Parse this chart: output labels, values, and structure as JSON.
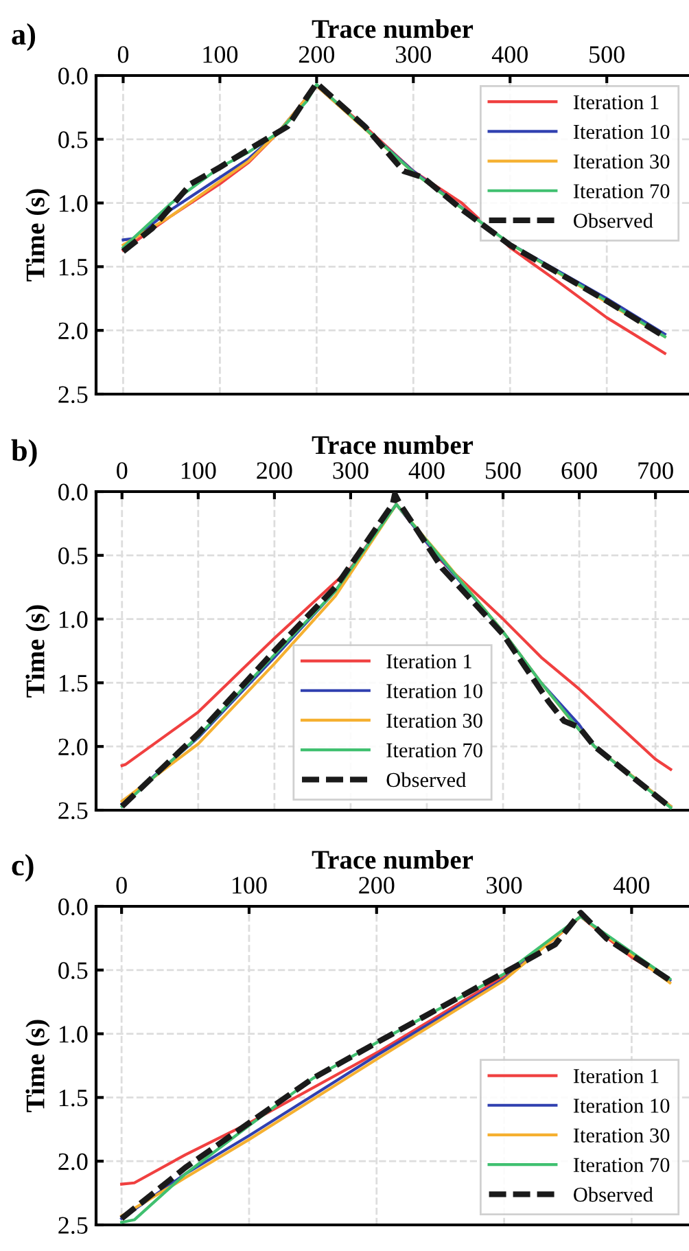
{
  "chart_data": [
    {
      "type": "line",
      "xlabel": "Trace number",
      "ylabel": "Time (s)",
      "annotations": [
        "a)"
      ],
      "xlim": [
        -28,
        585
      ],
      "xticks": [
        0,
        100,
        200,
        300,
        400,
        500
      ],
      "ylim": [
        2.5,
        0.0
      ],
      "yticks": [
        {
          "value": 0,
          "label": "0.0"
        },
        0.5,
        {
          "value": 1,
          "label": "1.0"
        },
        1.5,
        {
          "value": 2,
          "label": "2.0"
        },
        2.5
      ],
      "grid": true,
      "legend": "top right",
      "series": [
        {
          "name": "Iteration 1",
          "color": "#f04040",
          "x": [
            0,
            50,
            100,
            130,
            160,
            200,
            250,
            300,
            350,
            400,
            450,
            500,
            560
          ],
          "values": [
            1.37,
            1.1,
            0.85,
            0.68,
            0.45,
            0.08,
            0.4,
            0.75,
            1.0,
            1.35,
            1.62,
            1.9,
            2.18
          ]
        },
        {
          "name": "Iteration 10",
          "color": "#3040b0",
          "x": [
            0,
            10,
            50,
            100,
            130,
            160,
            200,
            300,
            400,
            500,
            560
          ],
          "values": [
            1.29,
            1.28,
            1.05,
            0.8,
            0.65,
            0.45,
            0.08,
            0.75,
            1.32,
            1.75,
            2.03
          ]
        },
        {
          "name": "Iteration 30",
          "color": "#f5b030",
          "x": [
            0,
            50,
            100,
            130,
            160,
            200,
            300,
            400,
            500,
            560
          ],
          "values": [
            1.33,
            1.1,
            0.83,
            0.67,
            0.45,
            0.08,
            0.76,
            1.32,
            1.78,
            2.05
          ]
        },
        {
          "name": "Iteration 70",
          "color": "#40c070",
          "x": [
            0,
            50,
            100,
            130,
            160,
            190,
            200,
            300,
            400,
            500,
            560
          ],
          "values": [
            1.35,
            1.0,
            0.72,
            0.6,
            0.45,
            0.2,
            0.07,
            0.76,
            1.32,
            1.77,
            2.05
          ]
        },
        {
          "name": "Observed",
          "color": "#1a1a1a",
          "line_style": "dashed",
          "x": [
            0,
            30,
            70,
            100,
            130,
            170,
            190,
            200,
            250,
            290,
            310,
            350,
            400,
            450,
            500,
            560
          ],
          "values": [
            1.38,
            1.2,
            0.85,
            0.72,
            0.58,
            0.4,
            0.17,
            0.06,
            0.4,
            0.75,
            0.8,
            1.05,
            1.33,
            1.55,
            1.77,
            2.05
          ]
        }
      ]
    },
    {
      "type": "line",
      "xlabel": "Trace number",
      "ylabel": "Time (s)",
      "annotations": [
        "b)"
      ],
      "xlim": [
        -34,
        744
      ],
      "xticks": [
        0,
        100,
        200,
        300,
        400,
        500,
        600,
        700
      ],
      "ylim": [
        2.5,
        0.0
      ],
      "yticks": [
        {
          "value": 0,
          "label": "0.0"
        },
        0.5,
        {
          "value": 1,
          "label": "1.0"
        },
        1.5,
        {
          "value": 2,
          "label": "2.0"
        },
        2.5
      ],
      "grid": true,
      "legend": "bottom",
      "series": [
        {
          "name": "Iteration 1",
          "color": "#f04040",
          "x": [
            0,
            5,
            100,
            200,
            300,
            360,
            420,
            500,
            550,
            600,
            700,
            720
          ],
          "values": [
            2.15,
            2.14,
            1.73,
            1.15,
            0.6,
            0.1,
            0.55,
            1.0,
            1.3,
            1.55,
            2.1,
            2.18
          ]
        },
        {
          "name": "Iteration 10",
          "color": "#3040b0",
          "x": [
            0,
            100,
            200,
            280,
            360,
            400,
            500,
            550,
            600,
            620,
            720
          ],
          "values": [
            2.45,
            1.93,
            1.3,
            0.78,
            0.1,
            0.4,
            1.1,
            1.5,
            1.83,
            2.0,
            2.47
          ]
        },
        {
          "name": "Iteration 30",
          "color": "#f5b030",
          "x": [
            0,
            100,
            200,
            280,
            360,
            420,
            500,
            550,
            590,
            620,
            720
          ],
          "values": [
            2.43,
            1.98,
            1.35,
            0.82,
            0.1,
            0.52,
            1.1,
            1.5,
            1.8,
            2.0,
            2.47
          ]
        },
        {
          "name": "Iteration 70",
          "color": "#40c070",
          "x": [
            0,
            100,
            200,
            280,
            360,
            500,
            550,
            600,
            620,
            720
          ],
          "values": [
            2.47,
            1.92,
            1.28,
            0.78,
            0.1,
            1.1,
            1.5,
            1.87,
            2.0,
            2.48
          ]
        },
        {
          "name": "Observed",
          "color": "#1a1a1a",
          "line_style": "dashed",
          "x": [
            0,
            100,
            200,
            280,
            355,
            358,
            365,
            420,
            500,
            560,
            580,
            600,
            620,
            720
          ],
          "values": [
            2.47,
            1.9,
            1.25,
            0.75,
            0.1,
            0.02,
            0.1,
            0.6,
            1.12,
            1.65,
            1.8,
            1.85,
            2.0,
            2.48
          ]
        }
      ]
    },
    {
      "type": "line",
      "xlabel": "Trace number",
      "ylabel": "Time (s)",
      "annotations": [
        "c)"
      ],
      "xlim": [
        -20,
        445
      ],
      "xticks": [
        0,
        100,
        200,
        300,
        400
      ],
      "ylim": [
        2.5,
        0.0
      ],
      "yticks": [
        {
          "value": 0,
          "label": "0.0"
        },
        0.5,
        {
          "value": 1,
          "label": "1.0"
        },
        1.5,
        {
          "value": 2,
          "label": "2.0"
        },
        2.5
      ],
      "grid": true,
      "legend": "bottom right",
      "series": [
        {
          "name": "Iteration 1",
          "color": "#f04040",
          "x": [
            0,
            10,
            50,
            100,
            200,
            300,
            340,
            360,
            400,
            430
          ],
          "values": [
            2.18,
            2.17,
            1.95,
            1.7,
            1.15,
            0.55,
            0.25,
            0.08,
            0.4,
            0.58
          ]
        },
        {
          "name": "Iteration 10",
          "color": "#3040b0",
          "x": [
            0,
            50,
            100,
            200,
            300,
            360,
            430
          ],
          "values": [
            2.45,
            2.1,
            1.8,
            1.17,
            0.57,
            0.08,
            0.58
          ]
        },
        {
          "name": "Iteration 30",
          "color": "#f5b030",
          "x": [
            0,
            50,
            100,
            200,
            300,
            360,
            430
          ],
          "values": [
            2.43,
            2.13,
            1.83,
            1.2,
            0.58,
            0.08,
            0.6
          ]
        },
        {
          "name": "Iteration 70",
          "color": "#40c070",
          "x": [
            0,
            10,
            50,
            100,
            150,
            200,
            300,
            360,
            430
          ],
          "values": [
            2.48,
            2.46,
            2.1,
            1.72,
            1.35,
            1.07,
            0.53,
            0.08,
            0.57
          ]
        },
        {
          "name": "Observed",
          "color": "#1a1a1a",
          "line_style": "dashed",
          "x": [
            0,
            50,
            100,
            150,
            200,
            300,
            340,
            360,
            380,
            430
          ],
          "values": [
            2.45,
            2.05,
            1.7,
            1.35,
            1.07,
            0.52,
            0.3,
            0.05,
            0.25,
            0.58
          ]
        }
      ]
    }
  ]
}
